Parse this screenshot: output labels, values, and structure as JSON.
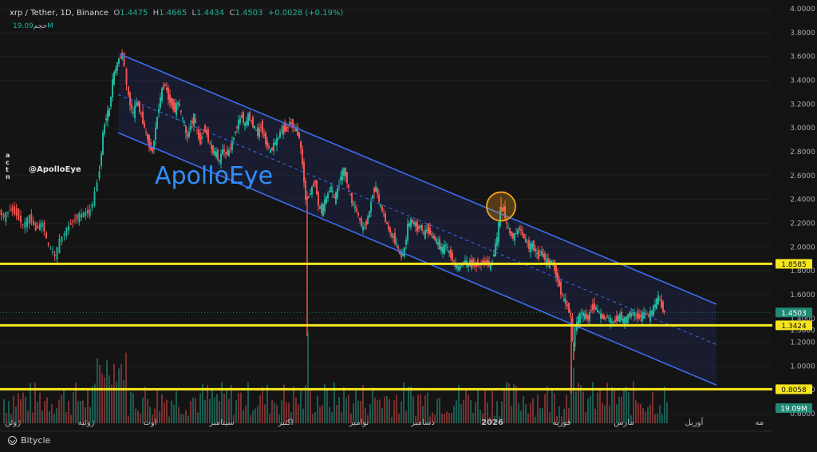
{
  "header": {
    "symbol": "xrp / Tether, 1D, Binance",
    "open_label": "O",
    "open": "1.4475",
    "high_label": "H",
    "high": "1.4665",
    "low_label": "L",
    "low": "1.4434",
    "close_label": "C",
    "close": "1.4503",
    "change": "+0.0028 (+0.19%)"
  },
  "volume_row": {
    "label": "حجم",
    "value": "19.09M"
  },
  "footer": {
    "brand": "Bitycle"
  },
  "colors": {
    "up": "#21b29a",
    "down": "#ef5350",
    "channel": "#3d6cf0",
    "level": "#f5e51f",
    "accent": "#2f8fff",
    "highlight": "#f7a41a"
  },
  "chart_data": {
    "type": "candlestick",
    "symbol": "XRP/USDT",
    "timeframe": "1D",
    "y_axis": {
      "scale": "linear",
      "ylim": [
        0.52,
        4.02
      ],
      "ticks": [
        "4.0000",
        "3.8000",
        "3.6000",
        "3.4000",
        "3.2000",
        "3.0000",
        "2.8000",
        "2.6000",
        "2.4000",
        "2.2000",
        "2.0000",
        "1.8000",
        "1.6000",
        "1.4000",
        "1.2000",
        "1.0000",
        "0.8000",
        "0.6000"
      ],
      "tick_values": [
        4.0,
        3.8,
        3.6,
        3.4,
        3.2,
        3.0,
        2.8,
        2.6,
        2.4,
        2.2,
        2.0,
        1.8,
        1.6,
        1.4,
        1.2,
        1.0,
        0.8,
        0.6
      ],
      "hidden_tick": "1.3000",
      "hidden_tick_value": 1.3
    },
    "x_axis": {
      "labels": [
        "ژوئن",
        "ژوئیه",
        "اوت",
        "سپتامبر",
        "اکتبر",
        "نوامبر",
        "دسامبر",
        "2026",
        "فوریه",
        "مارس",
        "آوریل",
        "مه"
      ],
      "bold_label": "2026"
    },
    "horizontal_levels": [
      {
        "value": 1.8585,
        "label": "1.8585"
      },
      {
        "value": 1.3424,
        "label": "1.3424"
      },
      {
        "value": 0.8058,
        "label": "0.8058"
      }
    ],
    "current_price": {
      "value": 1.4503,
      "label": "1.4503"
    },
    "volume_badge": "19.09M",
    "watermark": "ApolloEye",
    "author_tag": "@ApolloEye",
    "price_path": [
      [
        0,
        2.3
      ],
      [
        6,
        2.25
      ],
      [
        14,
        2.32
      ],
      [
        22,
        2.28
      ],
      [
        30,
        2.18
      ],
      [
        38,
        2.25
      ],
      [
        46,
        2.15
      ],
      [
        54,
        2.2
      ],
      [
        62,
        2.0
      ],
      [
        70,
        1.92
      ],
      [
        76,
        2.05
      ],
      [
        82,
        2.12
      ],
      [
        90,
        2.2
      ],
      [
        98,
        2.25
      ],
      [
        106,
        2.28
      ],
      [
        114,
        2.3
      ],
      [
        120,
        2.45
      ],
      [
        126,
        2.65
      ],
      [
        130,
        2.95
      ],
      [
        134,
        3.1
      ],
      [
        138,
        3.15
      ],
      [
        142,
        3.4
      ],
      [
        146,
        3.5
      ],
      [
        150,
        3.58
      ],
      [
        154,
        3.62
      ],
      [
        157,
        3.52
      ],
      [
        160,
        3.35
      ],
      [
        164,
        3.2
      ],
      [
        168,
        3.12
      ],
      [
        172,
        3.22
      ],
      [
        176,
        3.15
      ],
      [
        180,
        3.05
      ],
      [
        184,
        2.95
      ],
      [
        188,
        2.85
      ],
      [
        192,
        2.8
      ],
      [
        196,
        3.0
      ],
      [
        200,
        3.18
      ],
      [
        204,
        3.32
      ],
      [
        208,
        3.36
      ],
      [
        212,
        3.25
      ],
      [
        216,
        3.2
      ],
      [
        220,
        3.15
      ],
      [
        224,
        3.22
      ],
      [
        228,
        3.12
      ],
      [
        232,
        3.0
      ],
      [
        236,
        2.92
      ],
      [
        240,
        3.02
      ],
      [
        244,
        3.1
      ],
      [
        248,
        2.96
      ],
      [
        252,
        2.88
      ],
      [
        256,
        3.0
      ],
      [
        260,
        2.95
      ],
      [
        264,
        2.85
      ],
      [
        268,
        2.8
      ],
      [
        272,
        2.78
      ],
      [
        276,
        2.72
      ],
      [
        280,
        2.82
      ],
      [
        284,
        2.78
      ],
      [
        288,
        2.8
      ],
      [
        292,
        2.88
      ],
      [
        296,
        2.98
      ],
      [
        300,
        3.05
      ],
      [
        304,
        3.1
      ],
      [
        308,
        3.02
      ],
      [
        312,
        3.1
      ],
      [
        316,
        3.05
      ],
      [
        320,
        3.0
      ],
      [
        324,
        2.95
      ],
      [
        328,
        3.02
      ],
      [
        332,
        2.92
      ],
      [
        336,
        2.85
      ],
      [
        340,
        2.8
      ],
      [
        344,
        2.86
      ],
      [
        348,
        2.9
      ],
      [
        352,
        2.96
      ],
      [
        356,
        3.0
      ],
      [
        360,
        2.98
      ],
      [
        364,
        3.05
      ],
      [
        368,
        3.02
      ],
      [
        372,
        2.98
      ],
      [
        376,
        2.92
      ],
      [
        380,
        2.7
      ],
      [
        384,
        2.4
      ],
      [
        388,
        2.42
      ],
      [
        392,
        2.5
      ],
      [
        396,
        2.55
      ],
      [
        400,
        2.35
      ],
      [
        404,
        2.3
      ],
      [
        408,
        2.38
      ],
      [
        412,
        2.45
      ],
      [
        416,
        2.5
      ],
      [
        420,
        2.4
      ],
      [
        424,
        2.48
      ],
      [
        428,
        2.6
      ],
      [
        432,
        2.65
      ],
      [
        436,
        2.55
      ],
      [
        440,
        2.42
      ],
      [
        444,
        2.35
      ],
      [
        448,
        2.3
      ],
      [
        452,
        2.22
      ],
      [
        456,
        2.15
      ],
      [
        460,
        2.2
      ],
      [
        464,
        2.3
      ],
      [
        468,
        2.45
      ],
      [
        472,
        2.5
      ],
      [
        476,
        2.38
      ],
      [
        480,
        2.3
      ],
      [
        484,
        2.22
      ],
      [
        488,
        2.15
      ],
      [
        492,
        2.1
      ],
      [
        496,
        2.05
      ],
      [
        500,
        1.98
      ],
      [
        504,
        1.92
      ],
      [
        508,
        1.98
      ],
      [
        512,
        2.18
      ],
      [
        516,
        2.22
      ],
      [
        520,
        2.2
      ],
      [
        524,
        2.15
      ],
      [
        528,
        2.18
      ],
      [
        532,
        2.1
      ],
      [
        536,
        2.15
      ],
      [
        540,
        2.12
      ],
      [
        544,
        2.08
      ],
      [
        548,
        2.05
      ],
      [
        552,
        2.0
      ],
      [
        556,
        1.98
      ],
      [
        560,
        2.02
      ],
      [
        564,
        1.95
      ],
      [
        568,
        1.9
      ],
      [
        572,
        1.85
      ],
      [
        576,
        1.82
      ],
      [
        580,
        1.86
      ],
      [
        584,
        1.88
      ],
      [
        588,
        1.85
      ],
      [
        592,
        1.87
      ],
      [
        596,
        1.84
      ],
      [
        600,
        1.86
      ],
      [
        604,
        1.85
      ],
      [
        608,
        1.88
      ],
      [
        612,
        1.86
      ],
      [
        616,
        1.84
      ],
      [
        620,
        1.95
      ],
      [
        624,
        2.08
      ],
      [
        628,
        2.3
      ],
      [
        632,
        2.32
      ],
      [
        636,
        2.18
      ],
      [
        640,
        2.12
      ],
      [
        644,
        2.08
      ],
      [
        648,
        2.12
      ],
      [
        652,
        2.16
      ],
      [
        656,
        2.1
      ],
      [
        660,
        2.05
      ],
      [
        664,
        2.0
      ],
      [
        668,
        2.02
      ],
      [
        672,
        1.96
      ],
      [
        676,
        1.92
      ],
      [
        680,
        1.95
      ],
      [
        684,
        1.9
      ],
      [
        688,
        1.86
      ],
      [
        692,
        1.88
      ],
      [
        696,
        1.82
      ],
      [
        700,
        1.72
      ],
      [
        704,
        1.62
      ],
      [
        708,
        1.55
      ],
      [
        712,
        1.5
      ],
      [
        716,
        1.42
      ],
      [
        719,
        1.2
      ],
      [
        722,
        1.32
      ],
      [
        726,
        1.4
      ],
      [
        730,
        1.45
      ],
      [
        734,
        1.42
      ],
      [
        738,
        1.4
      ],
      [
        742,
        1.48
      ],
      [
        746,
        1.5
      ],
      [
        750,
        1.46
      ],
      [
        754,
        1.42
      ],
      [
        758,
        1.4
      ],
      [
        762,
        1.42
      ],
      [
        766,
        1.38
      ],
      [
        770,
        1.36
      ],
      [
        774,
        1.4
      ],
      [
        778,
        1.42
      ],
      [
        782,
        1.38
      ],
      [
        786,
        1.4
      ],
      [
        790,
        1.43
      ],
      [
        794,
        1.45
      ],
      [
        798,
        1.42
      ],
      [
        802,
        1.41
      ],
      [
        806,
        1.43
      ],
      [
        810,
        1.44
      ],
      [
        814,
        1.42
      ],
      [
        818,
        1.46
      ],
      [
        822,
        1.52
      ],
      [
        826,
        1.58
      ],
      [
        830,
        1.5
      ],
      [
        834,
        1.45
      ]
    ],
    "wicks": [
      {
        "x": 385,
        "low": 1.25
      },
      {
        "x": 716,
        "low": 0.77
      },
      {
        "x": 719,
        "low": 1.05
      },
      {
        "x": 153,
        "high": 3.66
      },
      {
        "x": 628,
        "high": 2.42
      }
    ],
    "channel": {
      "upper": [
        [
          150,
          3.62
        ],
        [
          898,
          1.52
        ]
      ],
      "lower": [
        [
          148,
          2.96
        ],
        [
          898,
          0.84
        ]
      ],
      "mid": [
        [
          148,
          3.28
        ],
        [
          898,
          1.18
        ]
      ]
    },
    "highlight_circle": {
      "x": 628,
      "y": 2.34
    }
  }
}
